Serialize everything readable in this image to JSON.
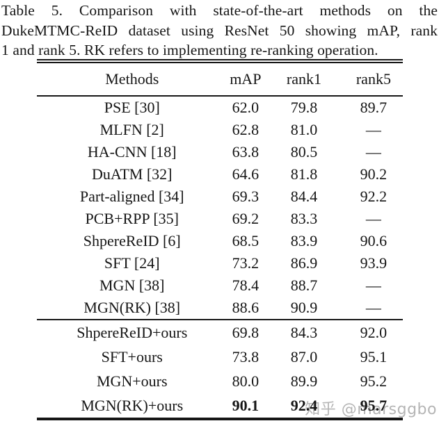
{
  "caption": {
    "lines": [
      "Table 5. Comparison with state-of-the-art methods on the",
      "DukeMTMC-ReID dataset using ResNet 50 showing mAP, rank",
      "1 and rank 5. RK refers to implementing re-ranking operation."
    ]
  },
  "table": {
    "headers": [
      "Methods",
      "mAP",
      "rank1",
      "rank5"
    ],
    "sections": [
      {
        "rows": [
          {
            "method": "PSE [30]",
            "map": "62.0",
            "rank1": "79.8",
            "rank5": "89.7",
            "bold": false
          },
          {
            "method": "MLFN [2]",
            "map": "62.8",
            "rank1": "81.0",
            "rank5": "—",
            "bold": false
          },
          {
            "method": "HA-CNN [18]",
            "map": "63.8",
            "rank1": "80.5",
            "rank5": "—",
            "bold": false
          },
          {
            "method": "DuATM [32]",
            "map": "64.6",
            "rank1": "81.8",
            "rank5": "90.2",
            "bold": false
          },
          {
            "method": "Part-aligned [34]",
            "map": "69.3",
            "rank1": "84.4",
            "rank5": "92.2",
            "bold": false
          },
          {
            "method": "PCB+RPP [35]",
            "map": "69.2",
            "rank1": "83.3",
            "rank5": "—",
            "bold": false
          },
          {
            "method": "ShpereReID [6]",
            "map": "68.5",
            "rank1": "83.9",
            "rank5": "90.6",
            "bold": false
          },
          {
            "method": "SFT [24]",
            "map": "73.2",
            "rank1": "86.9",
            "rank5": "93.9",
            "bold": false
          },
          {
            "method": "MGN [38]",
            "map": "78.4",
            "rank1": "88.7",
            "rank5": "—",
            "bold": false
          },
          {
            "method": "MGN(RK) [38]",
            "map": "88.6",
            "rank1": "90.9",
            "rank5": "—",
            "bold": false
          }
        ]
      },
      {
        "rows": [
          {
            "method": "ShpereReID+ours",
            "map": "69.8",
            "rank1": "84.3",
            "rank5": "92.0",
            "bold": false
          },
          {
            "method": "SFT+ours",
            "map": "73.8",
            "rank1": "87.0",
            "rank5": "95.1",
            "bold": false
          },
          {
            "method": "MGN+ours",
            "map": "80.0",
            "rank1": "89.9",
            "rank5": "95.2",
            "bold": false
          },
          {
            "method": "MGN(RK)+ours",
            "map": "90.1",
            "rank1": "92.4",
            "rank5": "95.7",
            "bold": true
          }
        ]
      }
    ]
  },
  "watermark": {
    "text": "知乎 @marsggbo",
    "color": "#b5b5b5"
  },
  "colors": {
    "text": "#151515",
    "rule": "#161616",
    "background": "#ffffff"
  }
}
